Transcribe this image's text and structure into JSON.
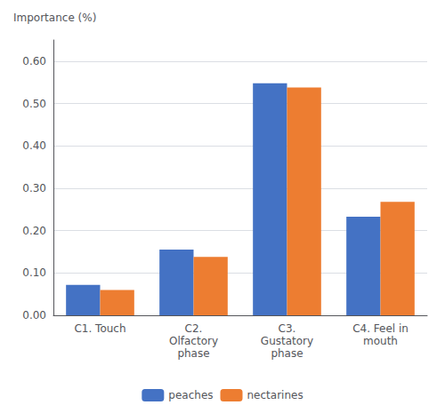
{
  "chart_data": {
    "type": "bar",
    "ylabel": "Importance (%)",
    "categories": [
      "C1. Touch",
      "C2.\nOlfactory\nphase",
      "C3.\nGustatory\nphase",
      "C4. Feel in\nmouth"
    ],
    "series": [
      {
        "name": "peaches",
        "color": "#4472C4",
        "values": [
          0.072,
          0.155,
          0.548,
          0.233
        ]
      },
      {
        "name": "nectarines",
        "color": "#ED7D31",
        "values": [
          0.06,
          0.138,
          0.538,
          0.268
        ]
      }
    ],
    "ylim": [
      0.0,
      0.65
    ],
    "yticks": [
      {
        "value": 0.0,
        "label": "0.00"
      },
      {
        "value": 0.1,
        "label": "0.10"
      },
      {
        "value": 0.2,
        "label": "0.20"
      },
      {
        "value": 0.3,
        "label": "0.30"
      },
      {
        "value": 0.4,
        "label": "0.40"
      },
      {
        "value": 0.5,
        "label": "0.50"
      },
      {
        "value": 0.6,
        "label": "0.60"
      }
    ],
    "grid": true,
    "legend": "bottom"
  }
}
